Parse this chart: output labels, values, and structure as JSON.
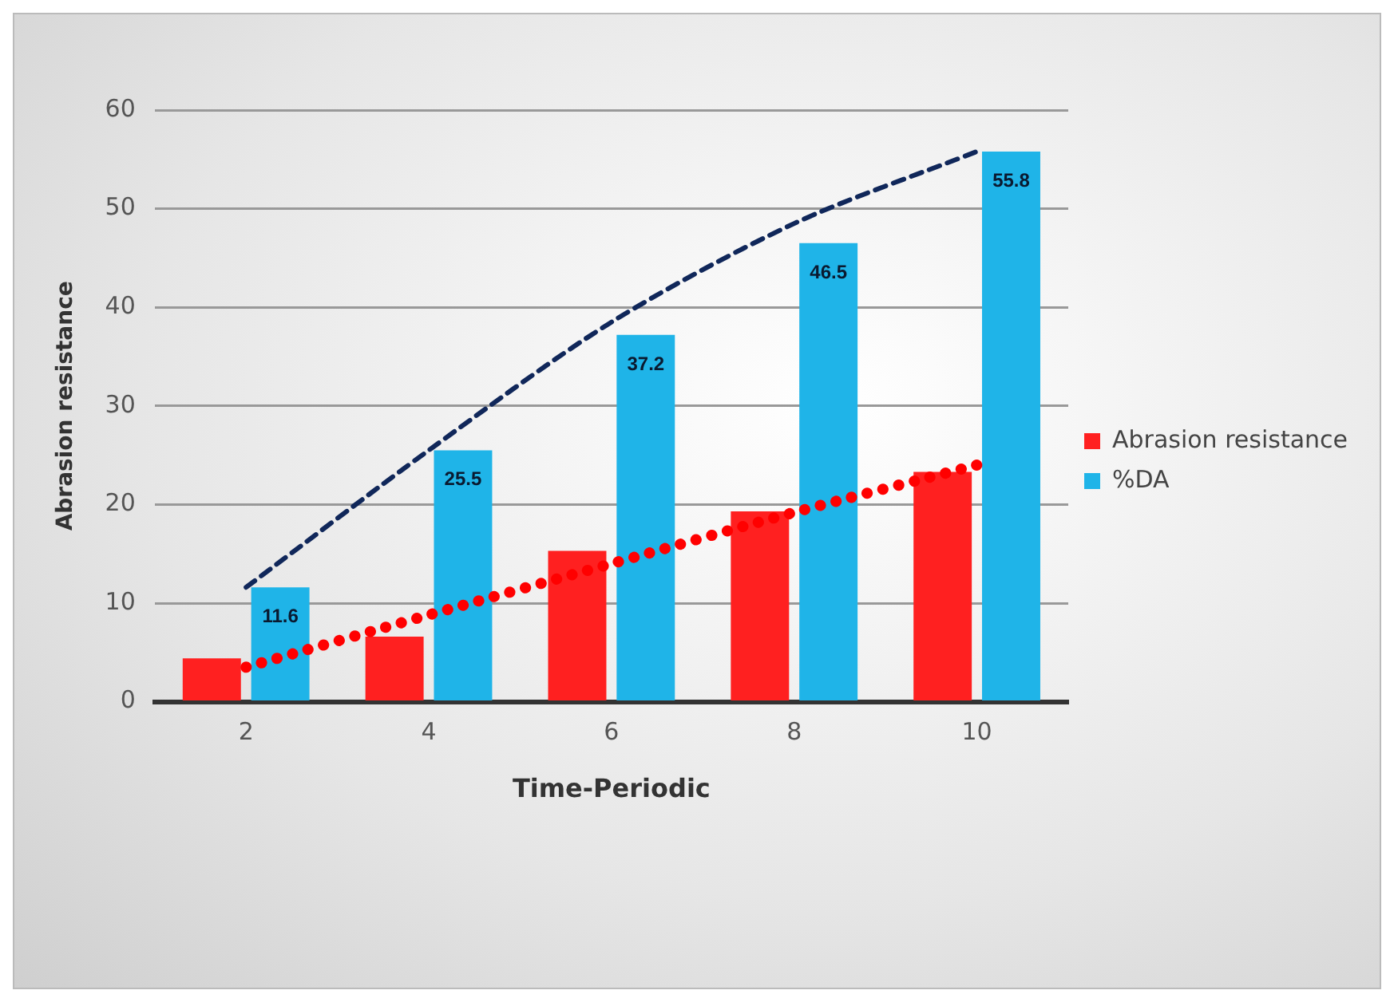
{
  "chart_data": {
    "type": "bar",
    "xlabel": "Time-Periodic",
    "ylabel": "Abrasion resistance",
    "categories": [
      "2",
      "4",
      "6",
      "8",
      "10"
    ],
    "ylim": [
      0,
      60
    ],
    "yticks": [
      0,
      10,
      20,
      30,
      40,
      50,
      60
    ],
    "grid": "y",
    "legend": "right",
    "series": [
      {
        "name": "Abrasion resistance",
        "color": "#ff2020",
        "values": [
          4.4,
          6.6,
          15.3,
          19.3,
          23.3
        ]
      },
      {
        "name": "%DA",
        "color": "#1fb4e8",
        "values": [
          11.6,
          25.5,
          37.2,
          46.5,
          55.8
        ],
        "value_labels": [
          "11.6",
          "25.5",
          "37.2",
          "46.5",
          "55.8"
        ]
      },
      {
        "type": "line",
        "color": "#ff0000",
        "line_style": "dotted",
        "values": [
          3.5,
          8.8,
          14,
          19.2,
          24
        ]
      },
      {
        "type": "line",
        "color": "#10275a",
        "line_style": "dashed",
        "values": [
          11.6,
          25.5,
          38.5,
          48.5,
          55.8
        ]
      }
    ]
  }
}
